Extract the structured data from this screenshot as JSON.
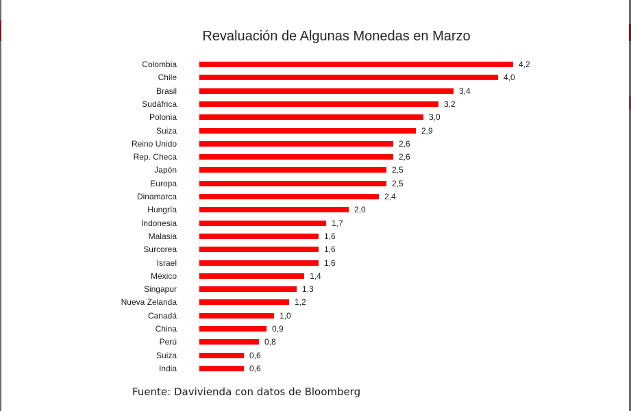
{
  "chart_data": {
    "type": "bar",
    "orientation": "horizontal",
    "title": "Revaluación de Algunas Monedas en Marzo",
    "xlabel": "",
    "ylabel": "",
    "categories": [
      "Colombia",
      "Chile",
      "Brasil",
      "Sudáfrica",
      "Polonia",
      "Suiza",
      "Reino Unido",
      "Rep. Checa",
      "Japón",
      "Europa",
      "Dinamarca",
      "Hungría",
      "Indonesia",
      "Malasia",
      "Surcorea",
      "Israel",
      "México",
      "Singapur",
      "Nueva Zelanda",
      "Canadá",
      "China",
      "Perú",
      "Suiza",
      "India"
    ],
    "values": [
      4.2,
      4.0,
      3.4,
      3.2,
      3.0,
      2.9,
      2.6,
      2.6,
      2.5,
      2.5,
      2.4,
      2.0,
      1.7,
      1.6,
      1.6,
      1.6,
      1.4,
      1.3,
      1.2,
      1.0,
      0.9,
      0.8,
      0.6,
      0.6
    ],
    "value_labels": [
      "4,2",
      "4,0",
      "3,4",
      "3,2",
      "3,0",
      "2,9",
      "2,6",
      "2,6",
      "2,5",
      "2,5",
      "2,4",
      "2,0",
      "1,7",
      "1,6",
      "1,6",
      "1,6",
      "1,4",
      "1,3",
      "1,2",
      "1,0",
      "0,9",
      "0,8",
      "0,6",
      "0,6"
    ],
    "xlim": [
      0,
      4.2
    ],
    "grid": false,
    "legend": null,
    "bar_color": "#ff0000",
    "source": "Fuente: Davivienda con datos de Bloomberg"
  },
  "title": "Revaluación de Algunas Monedas en Marzo",
  "source": "Fuente: Davivienda con datos de Bloomberg",
  "colors": {
    "bar": "#ff0000",
    "text": "#1a1a1a",
    "axis": "#d9d9d9"
  }
}
